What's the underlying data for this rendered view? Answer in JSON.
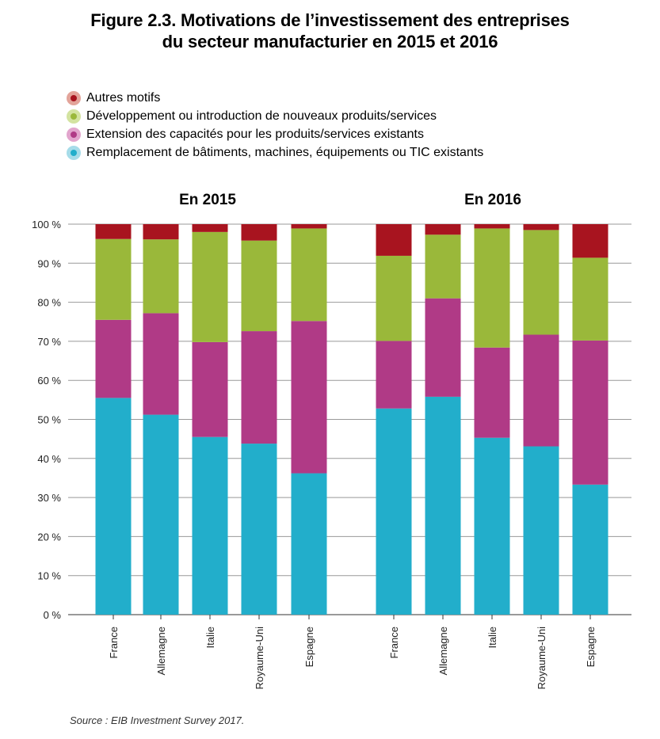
{
  "title_line1": "Figure 2.3. Motivations de l’investissement des entreprises",
  "title_line2": "du secteur manufacturier en 2015 et 2016",
  "source": "Source : EIB Investment Survey 2017.",
  "colors": {
    "autres": "#a8141f",
    "developpement": "#9ab83a",
    "extension": "#b03a86",
    "remplacement": "#22aecb",
    "grid": "#999999",
    "axis": "#333333"
  },
  "chart_data": [
    {
      "type": "bar",
      "stacked": true,
      "title": "En 2015",
      "categories": [
        "France",
        "Allemagne",
        "Italie",
        "Royaume-Uni",
        "Espagne"
      ],
      "series": [
        {
          "name": "Remplacement de bâtiments, machines, équipements ou TIC existants",
          "color": "#22aecb",
          "values": [
            55.5,
            51.2,
            45.5,
            43.8,
            36.2
          ]
        },
        {
          "name": "Extension des capacités pour les produits/services existants",
          "color": "#b03a86",
          "values": [
            20.0,
            26.0,
            24.3,
            28.8,
            39.0
          ]
        },
        {
          "name": "Développement ou introduction de nouveaux produits/services",
          "color": "#9ab83a",
          "values": [
            20.7,
            18.9,
            28.2,
            23.2,
            23.7
          ]
        },
        {
          "name": "Autres motifs",
          "color": "#a8141f",
          "values": [
            3.8,
            3.9,
            2.0,
            4.2,
            1.1
          ]
        }
      ],
      "ylim": [
        0,
        100
      ],
      "yticks": [
        "0 %",
        "10 %",
        "20 %",
        "30 %",
        "40 %",
        "50 %",
        "60 %",
        "70 %",
        "80 %",
        "90 %",
        "100 %"
      ],
      "grid": true
    },
    {
      "type": "bar",
      "stacked": true,
      "title": "En 2016",
      "categories": [
        "France",
        "Allemagne",
        "Italie",
        "Royaume-Uni",
        "Espagne"
      ],
      "series": [
        {
          "name": "Remplacement de bâtiments, machines, équipements ou TIC existants",
          "color": "#22aecb",
          "values": [
            52.8,
            55.8,
            45.3,
            43.1,
            33.3
          ]
        },
        {
          "name": "Extension des capacités pour les produits/services existants",
          "color": "#b03a86",
          "values": [
            17.3,
            25.2,
            23.1,
            28.6,
            36.9
          ]
        },
        {
          "name": "Développement ou introduction de nouveaux produits/services",
          "color": "#9ab83a",
          "values": [
            21.8,
            16.3,
            30.5,
            26.8,
            21.2
          ]
        },
        {
          "name": "Autres motifs",
          "color": "#a8141f",
          "values": [
            8.1,
            2.7,
            1.1,
            1.5,
            8.6
          ]
        }
      ],
      "ylim": [
        0,
        100
      ],
      "grid": true
    }
  ],
  "legend": [
    {
      "label": "Autres motifs",
      "color": "#a8141f",
      "ring": "#e3a49a"
    },
    {
      "label": "Développement ou introduction de nouveaux produits/services",
      "color": "#9ab83a",
      "ring": "#d3e3a0"
    },
    {
      "label": "Extension des capacités pour les produits/services existants",
      "color": "#b03a86",
      "ring": "#e2a5cd"
    },
    {
      "label": "Remplacement de bâtiments, machines, équipements ou TIC existants",
      "color": "#22aecb",
      "ring": "#a6dce9"
    }
  ]
}
